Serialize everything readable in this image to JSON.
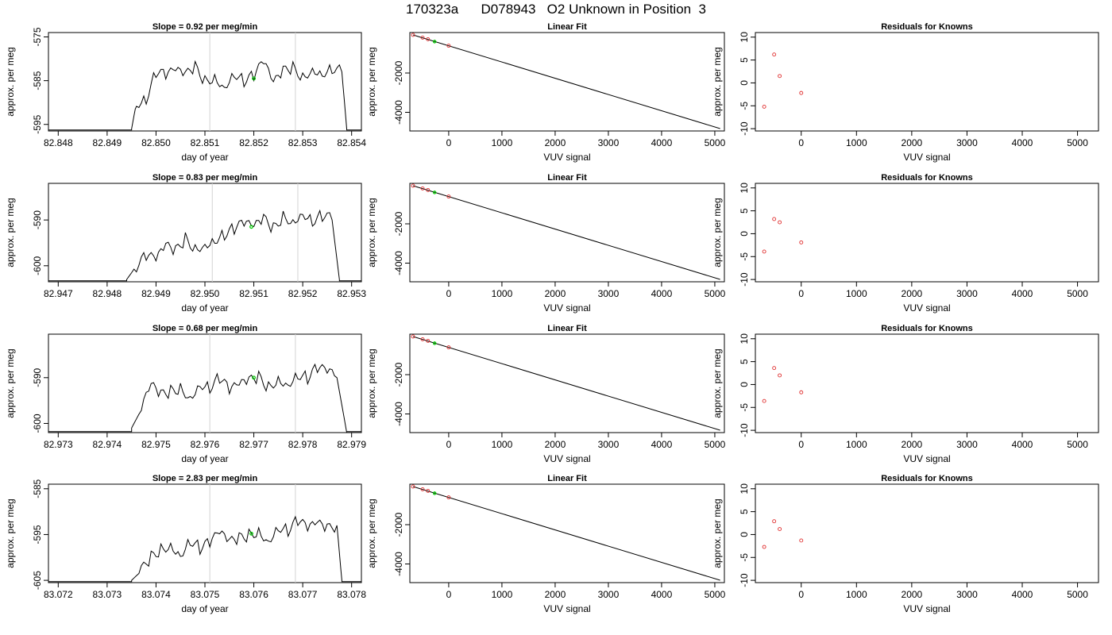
{
  "page_title": "170323a      D078943   O2 Unknown in Position  3",
  "colors": {
    "trace": "#000000",
    "reference_lines": "#d3d3d3",
    "unknown_marker": "#00cc00",
    "known_marker": "#e03030"
  },
  "chart_data": [
    {
      "type": "line",
      "row": 1,
      "panel": "trace",
      "title": "Slope =  0.92  per meg/min",
      "xlabel": "day of year",
      "ylabel": "approx. per meg",
      "xlim": [
        82.8478,
        82.8542
      ],
      "ylim": [
        -596.5,
        -574
      ],
      "x_ticks": [
        "82.848",
        "82.849",
        "82.850",
        "82.851",
        "82.852",
        "82.853",
        "82.854"
      ],
      "y_ticks": [
        "-575",
        "-585",
        "-595"
      ],
      "y_tick_values": [
        -575,
        -585,
        -595
      ],
      "reference_x": [
        82.8511,
        82.85285
      ],
      "trace_start": 82.8495,
      "trace_end": 82.8539,
      "trace_x": [
        82.8495,
        82.8496,
        82.8498,
        82.85,
        82.8502,
        82.8504,
        82.8506,
        82.8508,
        82.851,
        82.8512,
        82.8514,
        82.8516,
        82.8518,
        82.852,
        82.8522,
        82.8524,
        82.8526,
        82.8528,
        82.853,
        82.8532,
        82.8534,
        82.8536,
        82.8538,
        82.8539
      ],
      "trace_y": [
        -596,
        -590,
        -589,
        -583,
        -584,
        -583,
        -584,
        -582,
        -585,
        -584,
        -586,
        -583,
        -585,
        -584,
        -581,
        -586,
        -583,
        -582,
        -584,
        -582,
        -583,
        -582,
        -583,
        -596
      ],
      "unknown_point": {
        "x": 82.852,
        "y": -584.5
      }
    },
    {
      "type": "scatter",
      "row": 1,
      "panel": "fit",
      "title": "Linear Fit",
      "xlabel": "VUV signal",
      "ylabel": "approx. per meg",
      "xlim": [
        -730,
        5180
      ],
      "ylim": [
        -4950,
        60
      ],
      "x_ticks": [
        "0",
        "1000",
        "2000",
        "3000",
        "4000",
        "5000"
      ],
      "x_tick_values": [
        0,
        1000,
        2000,
        3000,
        4000,
        5000
      ],
      "y_ticks": [
        "-2000",
        "-4000"
      ],
      "y_tick_values": [
        -2000,
        -4000
      ],
      "fit_line": [
        [
          -670,
          -60
        ],
        [
          5100,
          -4830
        ]
      ],
      "known_points": [
        [
          -670,
          -60
        ],
        [
          -490,
          -200
        ],
        [
          -390,
          -280
        ],
        [
          0,
          -610
        ]
      ],
      "unknown_point": [
        -265,
        -400
      ]
    },
    {
      "type": "scatter",
      "row": 1,
      "panel": "residuals",
      "title": "Residuals for Knowns",
      "xlabel": "VUV signal",
      "ylabel": "approx. per meg",
      "xlim": [
        -830,
        5380
      ],
      "ylim": [
        -10.5,
        11
      ],
      "x_ticks": [
        "0",
        "1000",
        "2000",
        "3000",
        "4000",
        "5000"
      ],
      "x_tick_values": [
        0,
        1000,
        2000,
        3000,
        4000,
        5000
      ],
      "y_ticks": [
        "10",
        "5",
        "0",
        "-5",
        "-10"
      ],
      "y_tick_values": [
        10,
        5,
        0,
        -5,
        -10
      ],
      "points": [
        [
          -670,
          -5.2
        ],
        [
          -490,
          6.2
        ],
        [
          -390,
          1.5
        ],
        [
          0,
          -2.2
        ]
      ]
    },
    {
      "type": "line",
      "row": 2,
      "panel": "trace",
      "title": "Slope =  0.83  per meg/min",
      "xlabel": "day of year",
      "ylabel": "approx. per meg",
      "xlim": [
        82.9468,
        82.9532
      ],
      "ylim": [
        -603.5,
        -582
      ],
      "x_ticks": [
        "82.947",
        "82.948",
        "82.949",
        "82.950",
        "82.951",
        "82.952",
        "82.953"
      ],
      "y_ticks": [
        "-590",
        "-600"
      ],
      "y_tick_values": [
        -590,
        -600
      ],
      "reference_x": [
        82.95015,
        82.9519
      ],
      "trace_start": 82.9484,
      "trace_end": 82.95275,
      "trace_x": [
        82.9484,
        82.9486,
        82.9488,
        82.949,
        82.9492,
        82.9494,
        82.9496,
        82.9498,
        82.95,
        82.9502,
        82.9504,
        82.9506,
        82.9508,
        82.951,
        82.9512,
        82.9514,
        82.9516,
        82.9518,
        82.952,
        82.9522,
        82.9524,
        82.9526,
        82.95275
      ],
      "trace_y": [
        -603,
        -600,
        -598,
        -599,
        -596,
        -597,
        -594,
        -596,
        -595,
        -594,
        -593,
        -592,
        -591,
        -592,
        -590,
        -592,
        -589,
        -590,
        -588,
        -590,
        -589,
        -590,
        -603
      ],
      "unknown_point": {
        "x": 82.95095,
        "y": -591.5
      }
    },
    {
      "type": "scatter",
      "row": 2,
      "panel": "fit",
      "title": "Linear Fit",
      "xlabel": "VUV signal",
      "ylabel": "approx. per meg",
      "xlim": [
        -730,
        5180
      ],
      "ylim": [
        -4950,
        60
      ],
      "x_ticks": [
        "0",
        "1000",
        "2000",
        "3000",
        "4000",
        "5000"
      ],
      "x_tick_values": [
        0,
        1000,
        2000,
        3000,
        4000,
        5000
      ],
      "y_ticks": [
        "-2000",
        "-4000"
      ],
      "y_tick_values": [
        -2000,
        -4000
      ],
      "fit_line": [
        [
          -670,
          -60
        ],
        [
          5100,
          -4830
        ]
      ],
      "known_points": [
        [
          -670,
          -60
        ],
        [
          -490,
          -200
        ],
        [
          -390,
          -280
        ],
        [
          0,
          -610
        ]
      ],
      "unknown_point": [
        -265,
        -400
      ]
    },
    {
      "type": "scatter",
      "row": 2,
      "panel": "residuals",
      "title": "Residuals for Knowns",
      "xlabel": "VUV signal",
      "ylabel": "approx. per meg",
      "xlim": [
        -830,
        5380
      ],
      "ylim": [
        -10.5,
        11
      ],
      "x_ticks": [
        "0",
        "1000",
        "2000",
        "3000",
        "4000",
        "5000"
      ],
      "x_tick_values": [
        0,
        1000,
        2000,
        3000,
        4000,
        5000
      ],
      "y_ticks": [
        "10",
        "5",
        "0",
        "-5",
        "-10"
      ],
      "y_tick_values": [
        10,
        5,
        0,
        -5,
        -10
      ],
      "points": [
        [
          -670,
          -3.9
        ],
        [
          -490,
          3.2
        ],
        [
          -390,
          2.5
        ],
        [
          0,
          -1.9
        ]
      ]
    },
    {
      "type": "line",
      "row": 3,
      "panel": "trace",
      "title": "Slope =  0.68  per meg/min",
      "xlabel": "day of year",
      "ylabel": "approx. per meg",
      "xlim": [
        82.9728,
        82.9792
      ],
      "ylim": [
        -602,
        -580.5
      ],
      "x_ticks": [
        "82.973",
        "82.974",
        "82.975",
        "82.976",
        "82.977",
        "82.978",
        "82.979"
      ],
      "y_ticks": [
        "-590",
        "-600"
      ],
      "y_tick_values": [
        -590,
        -600
      ],
      "reference_x": [
        82.9761,
        82.97785
      ],
      "trace_start": 82.9745,
      "trace_end": 82.9789,
      "trace_x": [
        82.9745,
        82.9747,
        82.9749,
        82.9751,
        82.9753,
        82.9755,
        82.9757,
        82.9759,
        82.9761,
        82.9763,
        82.9765,
        82.9767,
        82.9769,
        82.9771,
        82.9773,
        82.9775,
        82.9777,
        82.9779,
        82.9781,
        82.9783,
        82.9785,
        82.9787,
        82.9789
      ],
      "trace_y": [
        -601,
        -597,
        -592,
        -594,
        -593,
        -592,
        -594,
        -591,
        -592,
        -590,
        -593,
        -592,
        -591,
        -590,
        -592,
        -590,
        -591,
        -589,
        -590,
        -588,
        -589,
        -590,
        -602
      ],
      "unknown_point": {
        "x": 82.977,
        "y": -590
      }
    },
    {
      "type": "scatter",
      "row": 3,
      "panel": "fit",
      "title": "Linear Fit",
      "xlabel": "VUV signal",
      "ylabel": "approx. per meg",
      "xlim": [
        -730,
        5180
      ],
      "ylim": [
        -4950,
        60
      ],
      "x_ticks": [
        "0",
        "1000",
        "2000",
        "3000",
        "4000",
        "5000"
      ],
      "x_tick_values": [
        0,
        1000,
        2000,
        3000,
        4000,
        5000
      ],
      "y_ticks": [
        "-2000",
        "-4000"
      ],
      "y_tick_values": [
        -2000,
        -4000
      ],
      "fit_line": [
        [
          -670,
          -60
        ],
        [
          5100,
          -4830
        ]
      ],
      "known_points": [
        [
          -670,
          -60
        ],
        [
          -490,
          -200
        ],
        [
          -390,
          -280
        ],
        [
          0,
          -610
        ]
      ],
      "unknown_point": [
        -265,
        -400
      ]
    },
    {
      "type": "scatter",
      "row": 3,
      "panel": "residuals",
      "title": "Residuals for Knowns",
      "xlabel": "VUV signal",
      "ylabel": "approx. per meg",
      "xlim": [
        -830,
        5380
      ],
      "ylim": [
        -10.5,
        11
      ],
      "x_ticks": [
        "0",
        "1000",
        "2000",
        "3000",
        "4000",
        "5000"
      ],
      "x_tick_values": [
        0,
        1000,
        2000,
        3000,
        4000,
        5000
      ],
      "y_ticks": [
        "10",
        "5",
        "0",
        "-5",
        "-10"
      ],
      "y_tick_values": [
        10,
        5,
        0,
        -5,
        -10
      ],
      "points": [
        [
          -670,
          -3.6
        ],
        [
          -490,
          3.6
        ],
        [
          -390,
          2.0
        ],
        [
          0,
          -1.7
        ]
      ]
    },
    {
      "type": "line",
      "row": 4,
      "panel": "trace",
      "title": "Slope =  2.83  per meg/min",
      "xlabel": "day of year",
      "ylabel": "approx. per meg",
      "xlim": [
        83.0718,
        83.0782
      ],
      "ylim": [
        -605.5,
        -584
      ],
      "x_ticks": [
        "83.072",
        "83.073",
        "83.074",
        "83.075",
        "83.076",
        "83.077",
        "83.078"
      ],
      "y_ticks": [
        "-585",
        "-595",
        "-605"
      ],
      "y_tick_values": [
        -585,
        -595,
        -605
      ],
      "reference_x": [
        83.0751,
        83.07685
      ],
      "trace_start": 83.0735,
      "trace_end": 83.0778,
      "trace_x": [
        83.0735,
        83.0737,
        83.0739,
        83.0741,
        83.0743,
        83.0745,
        83.0747,
        83.0749,
        83.0751,
        83.0753,
        83.0755,
        83.0757,
        83.0759,
        83.0761,
        83.0763,
        83.0765,
        83.0767,
        83.0769,
        83.0771,
        83.0773,
        83.0775,
        83.0777,
        83.0778
      ],
      "trace_y": [
        -605,
        -603,
        -600,
        -598,
        -597,
        -599,
        -596,
        -598,
        -597,
        -595,
        -597,
        -596,
        -595,
        -594,
        -596,
        -593,
        -594,
        -592,
        -594,
        -593,
        -594,
        -593,
        -605
      ],
      "unknown_point": {
        "x": 83.07595,
        "y": -594.8
      }
    },
    {
      "type": "scatter",
      "row": 4,
      "panel": "fit",
      "title": "Linear Fit",
      "xlabel": "VUV signal",
      "ylabel": "approx. per meg",
      "xlim": [
        -730,
        5180
      ],
      "ylim": [
        -4950,
        60
      ],
      "x_ticks": [
        "0",
        "1000",
        "2000",
        "3000",
        "4000",
        "5000"
      ],
      "x_tick_values": [
        0,
        1000,
        2000,
        3000,
        4000,
        5000
      ],
      "y_ticks": [
        "-2000",
        "-4000"
      ],
      "y_tick_values": [
        -2000,
        -4000
      ],
      "fit_line": [
        [
          -670,
          -60
        ],
        [
          5100,
          -4830
        ]
      ],
      "known_points": [
        [
          -670,
          -60
        ],
        [
          -490,
          -200
        ],
        [
          -390,
          -280
        ],
        [
          0,
          -610
        ]
      ],
      "unknown_point": [
        -265,
        -400
      ]
    },
    {
      "type": "scatter",
      "row": 4,
      "panel": "residuals",
      "title": "Residuals for Knowns",
      "xlabel": "VUV signal",
      "ylabel": "approx. per meg",
      "xlim": [
        -830,
        5380
      ],
      "ylim": [
        -10.5,
        11
      ],
      "x_ticks": [
        "0",
        "1000",
        "2000",
        "3000",
        "4000",
        "5000"
      ],
      "x_tick_values": [
        0,
        1000,
        2000,
        3000,
        4000,
        5000
      ],
      "y_ticks": [
        "10",
        "5",
        "0",
        "-5",
        "-10"
      ],
      "y_tick_values": [
        10,
        5,
        0,
        -5,
        -10
      ],
      "points": [
        [
          -670,
          -2.7
        ],
        [
          -490,
          2.9
        ],
        [
          -390,
          1.2
        ],
        [
          0,
          -1.3
        ]
      ]
    }
  ]
}
